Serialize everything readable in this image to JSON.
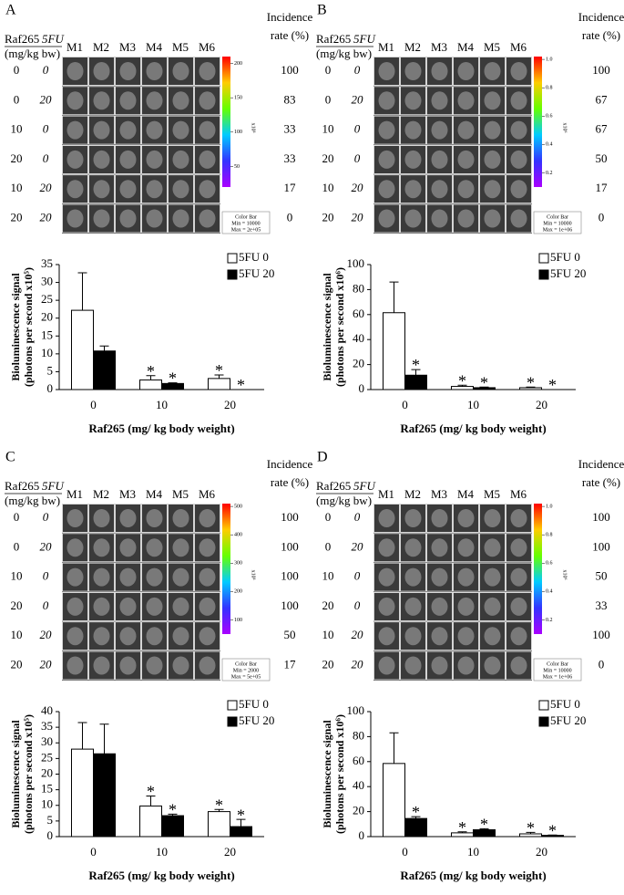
{
  "panels": [
    {
      "letter": "A",
      "drug": "Raf265",
      "drug2": "5FU",
      "unit": "(mg/kg bw)",
      "mice": [
        "M1",
        "M2",
        "M3",
        "M4",
        "M5",
        "M6"
      ],
      "incidence_header": [
        "Incidence",
        "rate (%)"
      ],
      "rows": [
        {
          "raf": "0",
          "fu": "0",
          "incidence": "100"
        },
        {
          "raf": "0",
          "fu": "20",
          "incidence": "83"
        },
        {
          "raf": "10",
          "fu": "0",
          "incidence": "33"
        },
        {
          "raf": "20",
          "fu": "0",
          "incidence": "33"
        },
        {
          "raf": "10",
          "fu": "20",
          "incidence": "17"
        },
        {
          "raf": "20",
          "fu": "20",
          "incidence": "0"
        }
      ],
      "colorbar": {
        "lim": [
          20,
          210
        ],
        "ticks": [
          200,
          150,
          100,
          50
        ],
        "unit": "x10³",
        "box": [
          "Color Bar",
          "Min = 10000",
          "Max = 2e+05"
        ]
      }
    },
    {
      "letter": "B",
      "drug": "Raf265",
      "drug2": "5FU",
      "unit": "(mg/kg bw)",
      "mice": [
        "M1",
        "M2",
        "M3",
        "M4",
        "M5",
        "M6"
      ],
      "incidence_header": [
        "Incidence",
        "rate (%)"
      ],
      "rows": [
        {
          "raf": "0",
          "fu": "0",
          "incidence": "100"
        },
        {
          "raf": "0",
          "fu": "20",
          "incidence": "67"
        },
        {
          "raf": "10",
          "fu": "0",
          "incidence": "67"
        },
        {
          "raf": "20",
          "fu": "0",
          "incidence": "50"
        },
        {
          "raf": "10",
          "fu": "20",
          "incidence": "17"
        },
        {
          "raf": "20",
          "fu": "20",
          "incidence": "0"
        }
      ],
      "colorbar": {
        "lim": [
          0.1,
          1.02
        ],
        "ticks": [
          {
            "value": 1,
            "label": "1.0"
          },
          0.8,
          0.6,
          0.4,
          0.2
        ],
        "unit": "x10⁶",
        "box": [
          "Color Bar",
          "Min = 10000",
          "Max = 1e+06"
        ]
      }
    },
    {
      "letter": "C",
      "drug": "Raf265",
      "drug2": "5FU",
      "unit": "(mg/kg bw)",
      "mice": [
        "M1",
        "M2",
        "M3",
        "M4",
        "M5",
        "M6"
      ],
      "incidence_header": [
        "Incidence",
        "rate (%)"
      ],
      "rows": [
        {
          "raf": "0",
          "fu": "0",
          "incidence": "100"
        },
        {
          "raf": "0",
          "fu": "20",
          "incidence": "100"
        },
        {
          "raf": "10",
          "fu": "0",
          "incidence": "100"
        },
        {
          "raf": "20",
          "fu": "0",
          "incidence": "100"
        },
        {
          "raf": "10",
          "fu": "20",
          "incidence": "50"
        },
        {
          "raf": "20",
          "fu": "20",
          "incidence": "17"
        }
      ],
      "colorbar": {
        "lim": [
          50,
          510
        ],
        "ticks": [
          500,
          400,
          300,
          200,
          100
        ],
        "unit": "x10³",
        "box": [
          "Color Bar",
          "Min = 2000",
          "Max = 5e+05"
        ]
      }
    },
    {
      "letter": "D",
      "drug": "Raf265",
      "drug2": "5FU",
      "unit": "(mg/kg bw)",
      "mice": [
        "M1",
        "M2",
        "M3",
        "M4",
        "M5",
        "M6"
      ],
      "incidence_header": [
        "Incidence",
        "rate (%)"
      ],
      "rows": [
        {
          "raf": "0",
          "fu": "0",
          "incidence": "100"
        },
        {
          "raf": "0",
          "fu": "20",
          "incidence": "100"
        },
        {
          "raf": "10",
          "fu": "0",
          "incidence": "50"
        },
        {
          "raf": "20",
          "fu": "0",
          "incidence": "33"
        },
        {
          "raf": "10",
          "fu": "20",
          "incidence": "100"
        },
        {
          "raf": "20",
          "fu": "20",
          "incidence": "0"
        }
      ],
      "colorbar": {
        "lim": [
          0.1,
          1.02
        ],
        "ticks": [
          {
            "value": 1,
            "label": "1.0"
          },
          0.8,
          0.6,
          0.4,
          0.2
        ],
        "unit": "x10⁶",
        "box": [
          "Color Bar",
          "Min = 10000",
          "Max = 1e+06"
        ]
      }
    }
  ],
  "chart_data": [
    {
      "type": "bar",
      "y_label": [
        "Bioluminescence signal",
        "(photons per second x10⁵)"
      ],
      "x_label": "Raf265 (mg/ kg body weight)",
      "categories": [
        "0",
        "10",
        "20"
      ],
      "ylim": [
        0,
        35
      ],
      "yticks": [
        0,
        5,
        10,
        15,
        20,
        25,
        30,
        35
      ],
      "legend": "upper right",
      "series": [
        {
          "name": "5FU 0",
          "color": "#ffffff",
          "values": [
            22.2,
            2.7,
            3.1
          ],
          "errors": [
            10.5,
            1.2,
            1.0
          ],
          "stars": [
            null,
            "*",
            "*"
          ]
        },
        {
          "name": "5FU 20",
          "color": "#000000",
          "values": [
            10.8,
            1.7,
            0
          ],
          "errors": [
            1.4,
            0.2,
            0
          ],
          "stars": [
            null,
            "*",
            "*"
          ]
        }
      ]
    },
    {
      "type": "bar",
      "y_label": [
        "Bioluminescence signal",
        "(photons per second x10⁶)"
      ],
      "x_label": "Raf265 (mg/ kg body weight)",
      "categories": [
        "0",
        "10",
        "20"
      ],
      "ylim": [
        0,
        100
      ],
      "yticks": [
        0,
        20,
        40,
        60,
        80,
        100
      ],
      "legend": "upper right",
      "series": [
        {
          "name": "5FU 0",
          "color": "#ffffff",
          "values": [
            61.5,
            2.5,
            1.5
          ],
          "errors": [
            24.5,
            1.0,
            0.5
          ],
          "stars": [
            null,
            "*",
            "*"
          ]
        },
        {
          "name": "5FU 20",
          "color": "#000000",
          "values": [
            11.5,
            1.5,
            0
          ],
          "errors": [
            4.5,
            0.5,
            0
          ],
          "stars": [
            "*",
            "*",
            "*"
          ]
        }
      ]
    },
    {
      "type": "bar",
      "y_label": [
        "Bioluminescence signal",
        "(photons per second x10⁵)"
      ],
      "x_label": "Raf265 (mg/ kg body weight)",
      "categories": [
        "0",
        "10",
        "20"
      ],
      "ylim": [
        0,
        40
      ],
      "yticks": [
        0,
        5,
        10,
        15,
        20,
        25,
        30,
        35,
        40
      ],
      "legend": "upper right",
      "series": [
        {
          "name": "5FU 0",
          "color": "#ffffff",
          "values": [
            28,
            9.8,
            8
          ],
          "errors": [
            8.5,
            3.2,
            0.7
          ],
          "stars": [
            null,
            "*",
            "*"
          ]
        },
        {
          "name": "5FU 20",
          "color": "#000000",
          "values": [
            26.5,
            6.7,
            3.2
          ],
          "errors": [
            9.5,
            0.5,
            2.3
          ],
          "stars": [
            null,
            "*",
            "*"
          ]
        }
      ]
    },
    {
      "type": "bar",
      "y_label": [
        "Bioluminescence signal",
        "(photons per second x10⁶)"
      ],
      "x_label": "Raf265 (mg/ kg body weight)",
      "categories": [
        "0",
        "10",
        "20"
      ],
      "ylim": [
        0,
        100
      ],
      "yticks": [
        0,
        20,
        40,
        60,
        80,
        100
      ],
      "legend": "upper right",
      "series": [
        {
          "name": "5FU 0",
          "color": "#ffffff",
          "values": [
            58.5,
            3,
            2.2
          ],
          "errors": [
            24.5,
            0.8,
            1.2
          ],
          "stars": [
            null,
            "*",
            "*"
          ]
        },
        {
          "name": "5FU 20",
          "color": "#000000",
          "values": [
            14.5,
            5.5,
            1
          ],
          "errors": [
            1.5,
            0.8,
            0.3
          ],
          "stars": [
            "*",
            "*",
            "*"
          ]
        }
      ]
    }
  ]
}
